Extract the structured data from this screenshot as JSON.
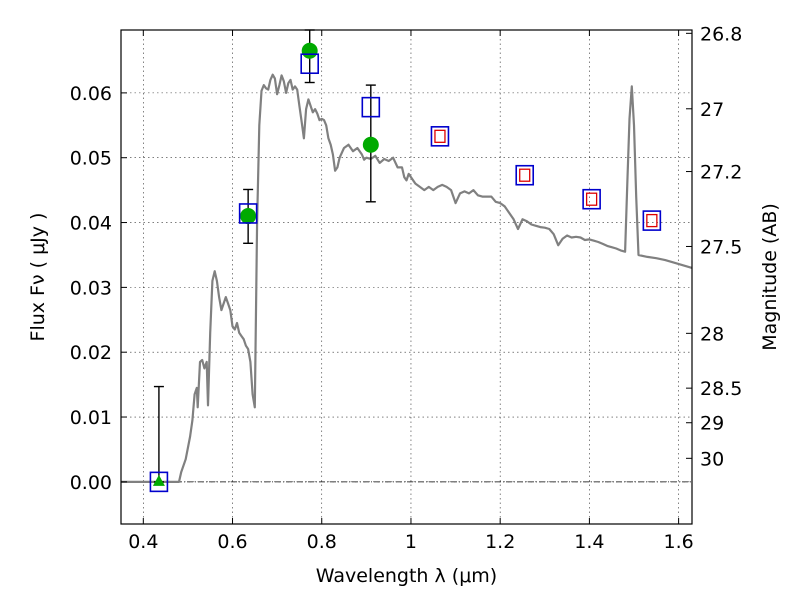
{
  "chart_data": {
    "type": "scatter",
    "xlabel": "Wavelength  λ (μm)",
    "ylabel": "Flux  Fν  ( μJy )",
    "ylabel_right": "Magnitude (AB)",
    "xlim": [
      0.35,
      1.63
    ],
    "ylim": [
      -0.0065,
      0.0697
    ],
    "x_ticks": [
      0.4,
      0.6,
      0.8,
      1.0,
      1.2,
      1.4,
      1.6
    ],
    "x_tick_labels": [
      "0.4",
      "0.6",
      "0.8",
      "1",
      "1.2",
      "1.4",
      "1.6"
    ],
    "y_ticks": [
      0.0,
      0.01,
      0.02,
      0.03,
      0.04,
      0.05,
      0.06
    ],
    "y_tick_labels": [
      "0.00",
      "0.01",
      "0.02",
      "0.03",
      "0.04",
      "0.05",
      "0.06"
    ],
    "right_ticks": [
      {
        "label": "26.8",
        "mag": 26.8
      },
      {
        "label": "27",
        "mag": 27.0
      },
      {
        "label": "27.2",
        "mag": 27.2
      },
      {
        "label": "27.5",
        "mag": 27.5
      },
      {
        "label": "28",
        "mag": 28.0
      },
      {
        "label": "28.5",
        "mag": 28.5
      },
      {
        "label": "29",
        "mag": 29.0
      },
      {
        "label": "30",
        "mag": 30.0
      }
    ],
    "grid": true,
    "zero_line": true,
    "colors": {
      "model": "#808080",
      "observed": "#00aa00",
      "model_box": "#0000cc",
      "predicted_box": "#dd0000",
      "errorbar": "#000000"
    },
    "series": [
      {
        "kind": "line",
        "points": [
          [
            0.35,
            0.0
          ],
          [
            0.48,
            0.0
          ],
          [
            0.485,
            0.0015
          ],
          [
            0.495,
            0.0035
          ],
          [
            0.505,
            0.007
          ],
          [
            0.51,
            0.0095
          ],
          [
            0.515,
            0.0135
          ],
          [
            0.52,
            0.0145
          ],
          [
            0.522,
            0.0115
          ],
          [
            0.527,
            0.0185
          ],
          [
            0.532,
            0.0188
          ],
          [
            0.537,
            0.0175
          ],
          [
            0.542,
            0.0185
          ],
          [
            0.545,
            0.0118
          ],
          [
            0.55,
            0.023
          ],
          [
            0.555,
            0.031
          ],
          [
            0.56,
            0.0325
          ],
          [
            0.565,
            0.031
          ],
          [
            0.57,
            0.0285
          ],
          [
            0.575,
            0.0265
          ],
          [
            0.58,
            0.0275
          ],
          [
            0.585,
            0.0285
          ],
          [
            0.59,
            0.0275
          ],
          [
            0.595,
            0.0265
          ],
          [
            0.6,
            0.024
          ],
          [
            0.605,
            0.0235
          ],
          [
            0.61,
            0.0245
          ],
          [
            0.615,
            0.023
          ],
          [
            0.62,
            0.0225
          ],
          [
            0.625,
            0.022
          ],
          [
            0.63,
            0.021
          ],
          [
            0.635,
            0.0205
          ],
          [
            0.64,
            0.0185
          ],
          [
            0.645,
            0.0135
          ],
          [
            0.65,
            0.0115
          ],
          [
            0.655,
            0.04
          ],
          [
            0.66,
            0.055
          ],
          [
            0.665,
            0.0603
          ],
          [
            0.67,
            0.0612
          ],
          [
            0.675,
            0.0607
          ],
          [
            0.68,
            0.0605
          ],
          [
            0.685,
            0.062
          ],
          [
            0.69,
            0.0628
          ],
          [
            0.695,
            0.0622
          ],
          [
            0.7,
            0.0598
          ],
          [
            0.705,
            0.0612
          ],
          [
            0.71,
            0.0627
          ],
          [
            0.715,
            0.0618
          ],
          [
            0.72,
            0.06
          ],
          [
            0.725,
            0.0615
          ],
          [
            0.73,
            0.062
          ],
          [
            0.735,
            0.0605
          ],
          [
            0.74,
            0.061
          ],
          [
            0.745,
            0.0605
          ],
          [
            0.75,
            0.058
          ],
          [
            0.755,
            0.0555
          ],
          [
            0.76,
            0.053
          ],
          [
            0.765,
            0.0575
          ],
          [
            0.77,
            0.059
          ],
          [
            0.775,
            0.058
          ],
          [
            0.78,
            0.057
          ],
          [
            0.785,
            0.0575
          ],
          [
            0.79,
            0.0568
          ],
          [
            0.795,
            0.0558
          ],
          [
            0.8,
            0.056
          ],
          [
            0.805,
            0.0558
          ],
          [
            0.81,
            0.055
          ],
          [
            0.815,
            0.053
          ],
          [
            0.82,
            0.052
          ],
          [
            0.825,
            0.0505
          ],
          [
            0.83,
            0.048
          ],
          [
            0.835,
            0.0485
          ],
          [
            0.84,
            0.05
          ],
          [
            0.85,
            0.0515
          ],
          [
            0.86,
            0.052
          ],
          [
            0.87,
            0.051
          ],
          [
            0.88,
            0.0515
          ],
          [
            0.89,
            0.0505
          ],
          [
            0.895,
            0.0497
          ],
          [
            0.9,
            0.05
          ],
          [
            0.91,
            0.0498
          ],
          [
            0.92,
            0.0503
          ],
          [
            0.93,
            0.0492
          ],
          [
            0.94,
            0.0498
          ],
          [
            0.95,
            0.0495
          ],
          [
            0.96,
            0.05
          ],
          [
            0.97,
            0.0485
          ],
          [
            0.98,
            0.0485
          ],
          [
            0.985,
            0.047
          ],
          [
            0.99,
            0.0465
          ],
          [
            0.995,
            0.0475
          ],
          [
            1.0,
            0.047
          ],
          [
            1.01,
            0.046
          ],
          [
            1.02,
            0.0455
          ],
          [
            1.03,
            0.045
          ],
          [
            1.04,
            0.0455
          ],
          [
            1.05,
            0.045
          ],
          [
            1.06,
            0.0455
          ],
          [
            1.07,
            0.0458
          ],
          [
            1.08,
            0.0455
          ],
          [
            1.09,
            0.045
          ],
          [
            1.1,
            0.043
          ],
          [
            1.11,
            0.0445
          ],
          [
            1.12,
            0.0448
          ],
          [
            1.13,
            0.0445
          ],
          [
            1.14,
            0.045
          ],
          [
            1.15,
            0.0442
          ],
          [
            1.16,
            0.044
          ],
          [
            1.17,
            0.044
          ],
          [
            1.18,
            0.044
          ],
          [
            1.19,
            0.0432
          ],
          [
            1.2,
            0.043
          ],
          [
            1.21,
            0.0425
          ],
          [
            1.22,
            0.0415
          ],
          [
            1.23,
            0.0405
          ],
          [
            1.24,
            0.039
          ],
          [
            1.25,
            0.0405
          ],
          [
            1.26,
            0.0402
          ],
          [
            1.27,
            0.0397
          ],
          [
            1.28,
            0.0395
          ],
          [
            1.29,
            0.0393
          ],
          [
            1.3,
            0.0392
          ],
          [
            1.31,
            0.039
          ],
          [
            1.32,
            0.0382
          ],
          [
            1.33,
            0.0365
          ],
          [
            1.34,
            0.0375
          ],
          [
            1.35,
            0.038
          ],
          [
            1.36,
            0.0377
          ],
          [
            1.37,
            0.0378
          ],
          [
            1.38,
            0.0377
          ],
          [
            1.39,
            0.0373
          ],
          [
            1.4,
            0.0374
          ],
          [
            1.41,
            0.0372
          ],
          [
            1.42,
            0.037
          ],
          [
            1.43,
            0.0367
          ],
          [
            1.44,
            0.0364
          ],
          [
            1.45,
            0.0362
          ],
          [
            1.46,
            0.036
          ],
          [
            1.47,
            0.0357
          ],
          [
            1.48,
            0.0355
          ],
          [
            1.485,
            0.046
          ],
          [
            1.49,
            0.056
          ],
          [
            1.495,
            0.061
          ],
          [
            1.5,
            0.055
          ],
          [
            1.505,
            0.044
          ],
          [
            1.51,
            0.035
          ],
          [
            1.53,
            0.0347
          ],
          [
            1.55,
            0.0345
          ],
          [
            1.57,
            0.0342
          ],
          [
            1.59,
            0.0338
          ],
          [
            1.61,
            0.0334
          ],
          [
            1.63,
            0.033
          ]
        ]
      },
      {
        "kind": "observed",
        "points": [
          {
            "x": 0.435,
            "y": 0.0,
            "shape": "triangle",
            "err_lo": 0.0,
            "err_hi": 0.0147
          },
          {
            "x": 0.635,
            "y": 0.041,
            "shape": "circle",
            "err_lo": 0.0368,
            "err_hi": 0.0451
          },
          {
            "x": 0.773,
            "y": 0.0665,
            "shape": "circle",
            "err_lo": 0.0616,
            "err_hi": 0.0697
          },
          {
            "x": 0.91,
            "y": 0.052,
            "shape": "circle",
            "err_lo": 0.0432,
            "err_hi": 0.0612
          }
        ]
      },
      {
        "kind": "model_box",
        "points": [
          {
            "x": 0.435,
            "y": 0.0
          },
          {
            "x": 0.635,
            "y": 0.0414
          },
          {
            "x": 0.773,
            "y": 0.0645
          },
          {
            "x": 0.91,
            "y": 0.0578
          },
          {
            "x": 1.065,
            "y": 0.0533
          },
          {
            "x": 1.255,
            "y": 0.0473
          },
          {
            "x": 1.405,
            "y": 0.0436
          },
          {
            "x": 1.54,
            "y": 0.0403
          }
        ]
      },
      {
        "kind": "predicted_box",
        "points": [
          {
            "x": 1.065,
            "y": 0.0533
          },
          {
            "x": 1.255,
            "y": 0.0473
          },
          {
            "x": 1.405,
            "y": 0.0436
          },
          {
            "x": 1.54,
            "y": 0.0403
          }
        ]
      }
    ]
  }
}
